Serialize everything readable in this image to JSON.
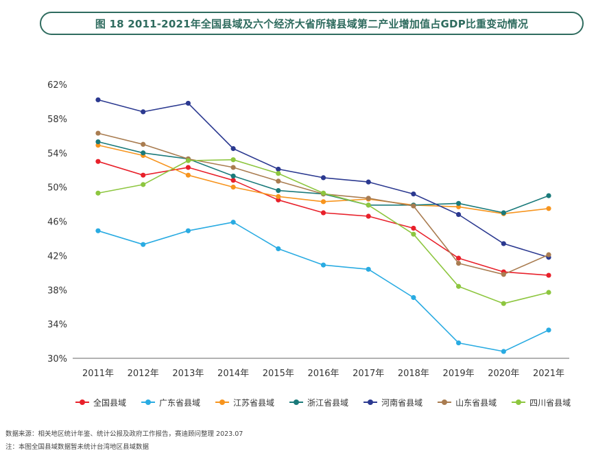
{
  "title": "图 18  2011-2021年全国县域及六个经济大省所辖县域第二产业增加值占GDP比重变动情况",
  "source": "数据来源：相关地区统计年鉴、统计公报及政府工作报告，赛迪顾问整理 2023.07",
  "footnote": "注：本图全国县域数据暂未统计台湾地区县域数据",
  "chart_data": {
    "type": "line",
    "categories": [
      "2011年",
      "2012年",
      "2013年",
      "2014年",
      "2015年",
      "2016年",
      "2017年",
      "2018年",
      "2019年",
      "2020年",
      "2021年"
    ],
    "ylim": [
      30,
      62
    ],
    "yticks": [
      30,
      34,
      38,
      42,
      46,
      50,
      54,
      58,
      62
    ],
    "ytick_labels": [
      "30%",
      "34%",
      "38%",
      "42%",
      "46%",
      "50%",
      "54%",
      "58%",
      "62%"
    ],
    "grid": false,
    "legend_position": "bottom",
    "series": [
      {
        "name": "全国县域",
        "color": "#e8202a",
        "values": [
          53.0,
          51.4,
          52.3,
          50.8,
          48.5,
          47.0,
          46.6,
          45.2,
          41.7,
          40.1,
          39.7
        ]
      },
      {
        "name": "广东省县域",
        "color": "#29abe2",
        "values": [
          44.9,
          43.3,
          44.9,
          45.9,
          42.8,
          40.9,
          40.4,
          37.1,
          31.8,
          30.8,
          33.3
        ]
      },
      {
        "name": "江苏省县域",
        "color": "#f7941d",
        "values": [
          54.9,
          53.7,
          51.4,
          50.0,
          48.9,
          48.3,
          48.6,
          47.9,
          47.7,
          46.9,
          47.5
        ]
      },
      {
        "name": "浙江省县域",
        "color": "#1a7a7a",
        "values": [
          55.3,
          54.0,
          53.3,
          51.3,
          49.6,
          49.2,
          47.9,
          47.9,
          48.1,
          47.0,
          49.0
        ]
      },
      {
        "name": "河南省县域",
        "color": "#2b3990",
        "values": [
          60.2,
          58.8,
          59.8,
          54.5,
          52.1,
          51.1,
          50.6,
          49.2,
          46.8,
          43.4,
          41.8
        ]
      },
      {
        "name": "山东省县域",
        "color": "#a97c50",
        "values": [
          56.3,
          55.0,
          53.3,
          52.3,
          50.7,
          49.2,
          48.7,
          47.8,
          41.1,
          39.8,
          42.1
        ]
      },
      {
        "name": "四川省县域",
        "color": "#8dc63f",
        "values": [
          49.3,
          50.3,
          53.1,
          53.2,
          51.6,
          49.3,
          47.9,
          44.5,
          38.4,
          36.4,
          37.7
        ]
      }
    ]
  }
}
